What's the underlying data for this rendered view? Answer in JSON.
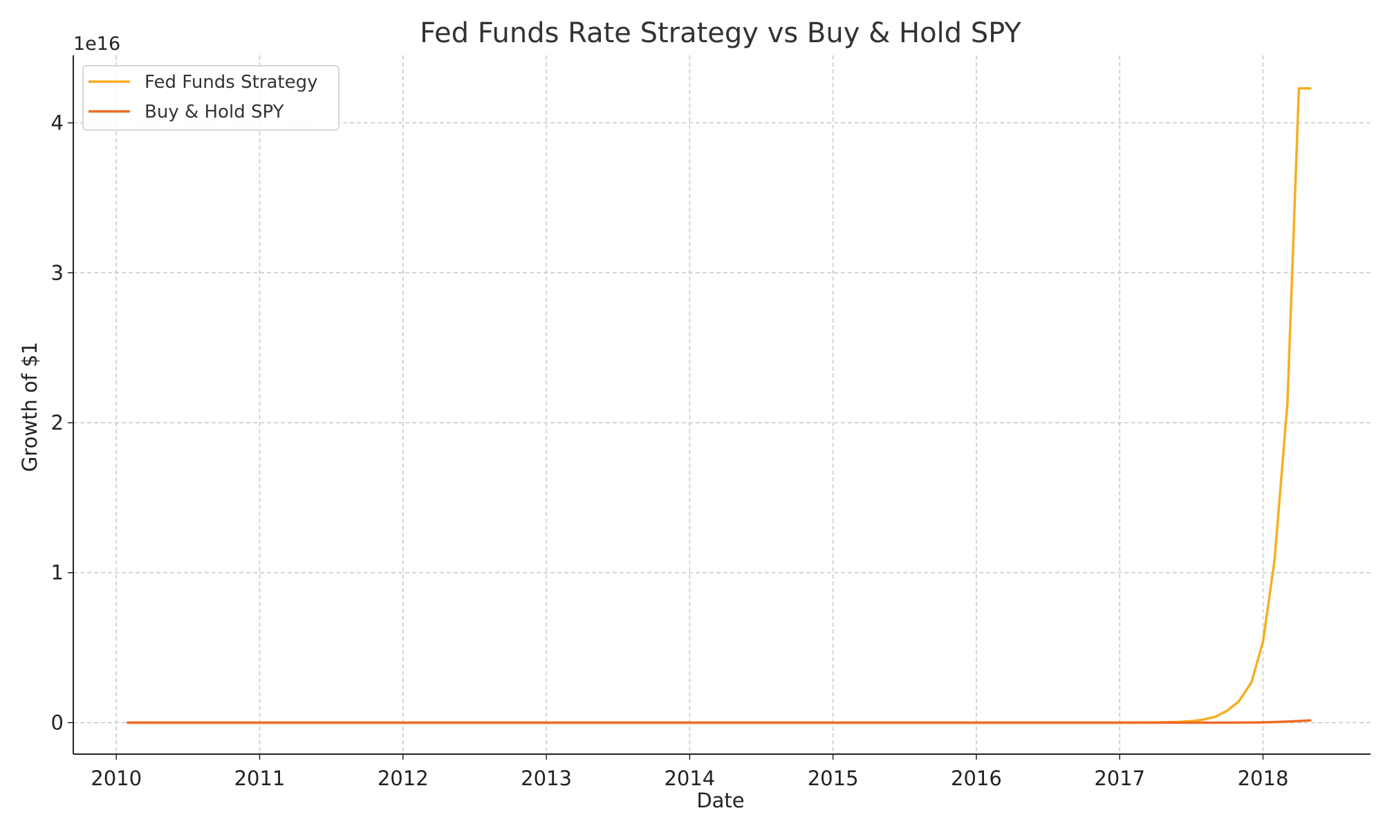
{
  "chart_data": {
    "type": "line",
    "title": "Fed Funds Rate Strategy vs Buy & Hold SPY",
    "xlabel": "Date",
    "ylabel": "Growth of $1",
    "y_offset_label": "1e16",
    "y_scale_factor": 1e+16,
    "xlim": [
      2009.7,
      2018.75
    ],
    "ylim": [
      -0.21,
      4.45
    ],
    "x_ticks": [
      2010,
      2011,
      2012,
      2013,
      2014,
      2015,
      2016,
      2017,
      2018
    ],
    "x_tick_labels": [
      "2010",
      "2011",
      "2012",
      "2013",
      "2014",
      "2015",
      "2016",
      "2017",
      "2018"
    ],
    "y_ticks": [
      0,
      1,
      2,
      3,
      4
    ],
    "y_tick_labels": [
      "0",
      "1",
      "2",
      "3",
      "4"
    ],
    "grid": true,
    "legend_position": "top-left",
    "series": [
      {
        "name": "Fed Funds Strategy",
        "color": "#F6AE20",
        "x": [
          2010.08,
          2011.0,
          2012.0,
          2013.0,
          2014.0,
          2015.0,
          2016.0,
          2017.0,
          2017.25,
          2017.42,
          2017.5,
          2017.58,
          2017.67,
          2017.75,
          2017.83,
          2017.92,
          2018.0,
          2018.08,
          2018.17,
          2018.25,
          2018.33
        ],
        "y": [
          0,
          0,
          0,
          0,
          0,
          0,
          0,
          0,
          0.002,
          0.005,
          0.01,
          0.02,
          0.04,
          0.08,
          0.14,
          0.27,
          0.54,
          1.08,
          2.13,
          4.23,
          4.23
        ]
      },
      {
        "name": "Buy & Hold SPY",
        "color": "#EE6A25",
        "x": [
          2010.08,
          2011.0,
          2012.0,
          2013.0,
          2014.0,
          2015.0,
          2016.0,
          2017.0,
          2017.5,
          2017.75,
          2017.92,
          2018.0,
          2018.08,
          2018.17,
          2018.25,
          2018.33
        ],
        "y": [
          0,
          0,
          0,
          0,
          0,
          0,
          0,
          0,
          0,
          0,
          0.001,
          0.002,
          0.004,
          0.007,
          0.011,
          0.015
        ]
      }
    ]
  }
}
